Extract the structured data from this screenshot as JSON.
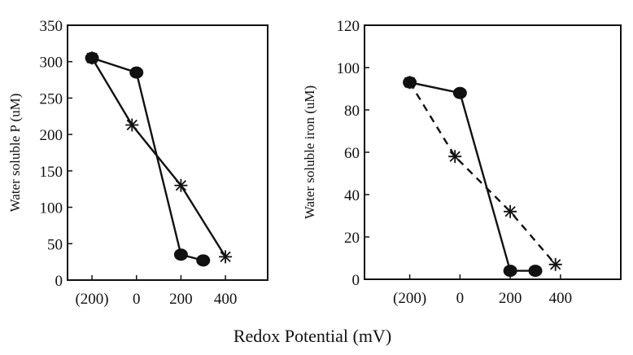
{
  "shared_xlabel": "Redox Potential (mV)",
  "chart_data": [
    {
      "type": "line",
      "ylabel": "Water soluble P (uM)",
      "xlabel": "Redox Potential (mV)",
      "xlim": [
        -310,
        590
      ],
      "ylim": [
        0,
        350
      ],
      "xticks": [
        -200,
        0,
        200,
        400
      ],
      "xtick_labels": [
        "(200)",
        "0",
        "200",
        "400"
      ],
      "yticks": [
        0,
        50,
        100,
        150,
        200,
        250,
        300,
        350
      ],
      "ytick_labels": [
        "0",
        "50",
        "100",
        "150",
        "200",
        "250",
        "300",
        "350"
      ],
      "series": [
        {
          "name": "circle",
          "marker": "circle",
          "line_style": "solid",
          "x": [
            -200,
            0,
            200,
            300
          ],
          "y": [
            305,
            285,
            35,
            27
          ]
        },
        {
          "name": "star",
          "marker": "star",
          "line_style": "solid",
          "x": [
            -200,
            -20,
            200,
            400
          ],
          "y": [
            305,
            213,
            130,
            32
          ]
        }
      ]
    },
    {
      "type": "line",
      "ylabel": "Water soluble iron (uM)",
      "xlabel": "Redox Potential (mV)",
      "xlim": [
        -380,
        640
      ],
      "ylim": [
        0,
        120
      ],
      "xticks": [
        -200,
        0,
        200,
        400
      ],
      "xtick_labels": [
        "(200)",
        "0",
        "200",
        "400"
      ],
      "yticks": [
        0,
        20,
        40,
        60,
        80,
        100,
        120
      ],
      "ytick_labels": [
        "0",
        "20",
        "40",
        "60",
        "80",
        "100",
        "120"
      ],
      "series": [
        {
          "name": "circle",
          "marker": "circle",
          "line_style": "solid",
          "x": [
            -200,
            0,
            200,
            300
          ],
          "y": [
            93,
            88,
            4,
            4
          ]
        },
        {
          "name": "star",
          "marker": "star",
          "line_style": "dashed",
          "x": [
            -200,
            -20,
            200,
            380
          ],
          "y": [
            93,
            58,
            32,
            7
          ]
        }
      ]
    }
  ]
}
